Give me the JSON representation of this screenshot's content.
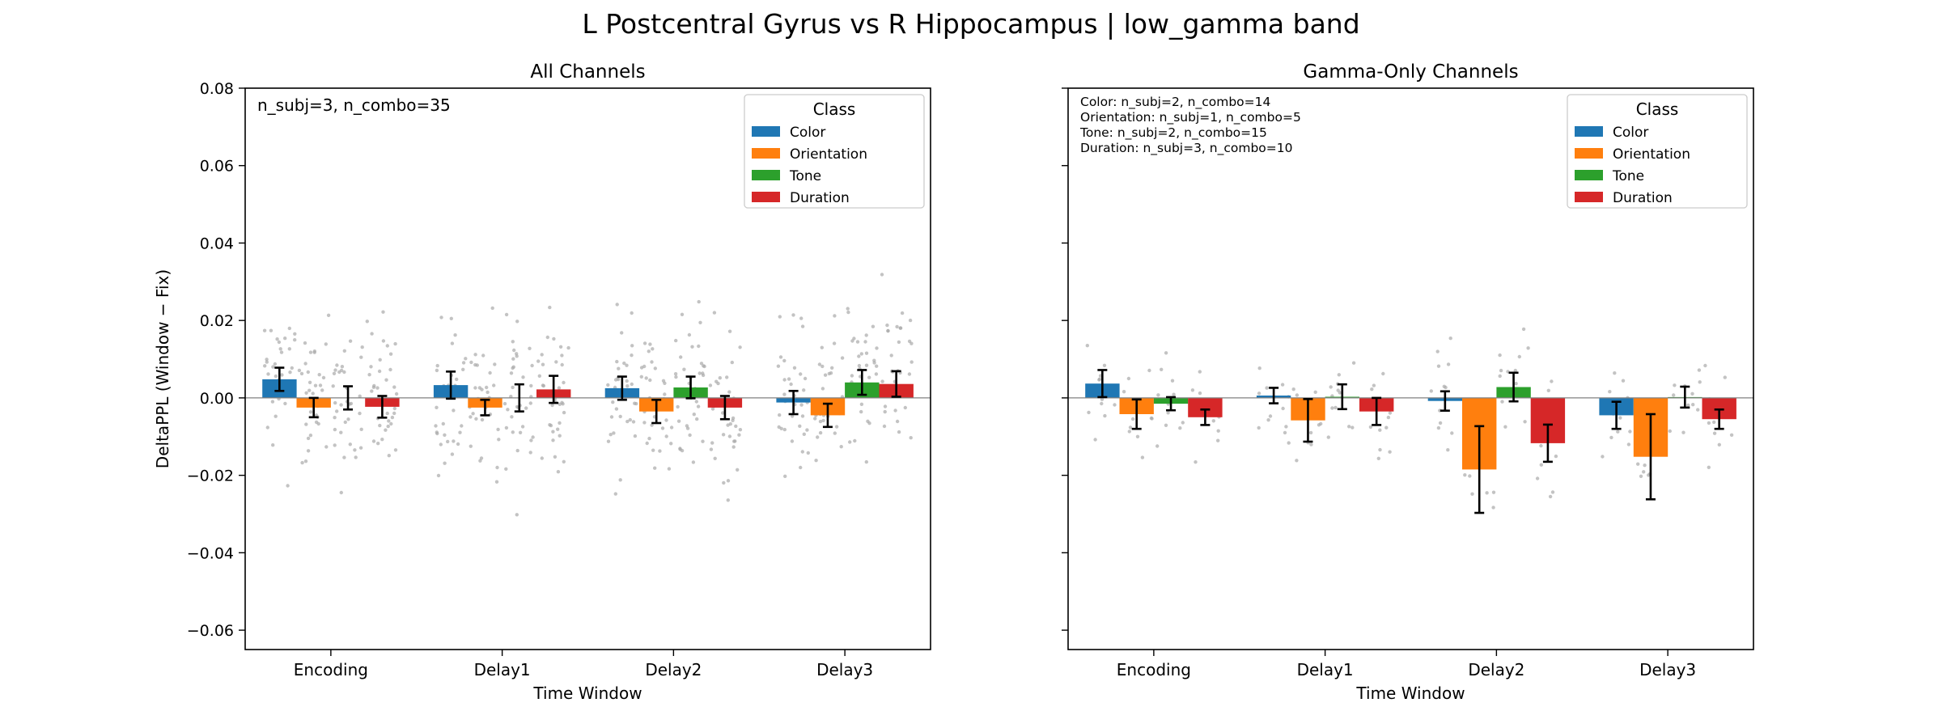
{
  "figure_title": "L Postcentral Gyrus vs R Hippocampus  |  low_gamma band",
  "colors": {
    "Color": "#1f77b4",
    "Orientation": "#ff7f0e",
    "Tone": "#2ca02c",
    "Duration": "#d62728",
    "scatter": "#aaaaaa",
    "errorbar": "#000000"
  },
  "chart_data": [
    {
      "type": "bar",
      "title": "All Channels",
      "xlabel": "Time Window",
      "ylabel": "DeltaPPL (Window − Fix)",
      "ylim": [
        -0.065,
        0.08
      ],
      "yticks": [
        -0.06,
        -0.04,
        -0.02,
        0.0,
        0.02,
        0.04,
        0.06,
        0.08
      ],
      "yticklabels": [
        "−0.06",
        "−0.04",
        "−0.02",
        "0.00",
        "0.02",
        "0.04",
        "0.06",
        "0.08"
      ],
      "categories": [
        "Encoding",
        "Delay1",
        "Delay2",
        "Delay3"
      ],
      "annotation": [
        "n_subj=3, n_combo=35"
      ],
      "legend": {
        "title": "Class",
        "entries": [
          "Color",
          "Orientation",
          "Tone",
          "Duration"
        ],
        "placement": "top-right"
      },
      "grid": false,
      "series": [
        {
          "name": "Color",
          "values": [
            0.0048,
            0.0033,
            0.0025,
            -0.0012
          ],
          "errors": [
            0.003,
            0.0035,
            0.003,
            0.003
          ]
        },
        {
          "name": "Orientation",
          "values": [
            -0.0025,
            -0.0025,
            -0.0035,
            -0.0045
          ],
          "errors": [
            0.0025,
            0.002,
            0.003,
            0.003
          ]
        },
        {
          "name": "Tone",
          "values": [
            0.0,
            0.0,
            0.0027,
            0.004
          ],
          "errors": [
            0.003,
            0.0035,
            0.0028,
            0.0032
          ]
        },
        {
          "name": "Duration",
          "values": [
            -0.0023,
            0.0022,
            -0.0025,
            0.0036
          ],
          "errors": [
            0.0028,
            0.0035,
            0.003,
            0.0033
          ]
        }
      ]
    },
    {
      "type": "bar",
      "title": "Gamma-Only Channels",
      "xlabel": "Time Window",
      "ylabel": "",
      "ylim": [
        -0.065,
        0.08
      ],
      "yticks": [
        -0.06,
        -0.04,
        -0.02,
        0.0,
        0.02,
        0.04,
        0.06,
        0.08
      ],
      "yticklabels": [],
      "categories": [
        "Encoding",
        "Delay1",
        "Delay2",
        "Delay3"
      ],
      "annotation": [
        "Color: n_subj=2, n_combo=14",
        "Orientation: n_subj=1, n_combo=5",
        "Tone: n_subj=2, n_combo=15",
        "Duration: n_subj=3, n_combo=10"
      ],
      "legend": {
        "title": "Class",
        "entries": [
          "Color",
          "Orientation",
          "Tone",
          "Duration"
        ],
        "placement": "top-right"
      },
      "grid": false,
      "series": [
        {
          "name": "Color",
          "values": [
            0.0037,
            0.0006,
            -0.0008,
            -0.0045
          ],
          "errors": [
            0.0035,
            0.002,
            0.0025,
            0.0035
          ]
        },
        {
          "name": "Orientation",
          "values": [
            -0.0042,
            -0.0058,
            -0.0185,
            -0.0152
          ],
          "errors": [
            0.0038,
            0.0055,
            0.0112,
            0.011
          ]
        },
        {
          "name": "Tone",
          "values": [
            -0.0015,
            0.0003,
            0.0028,
            0.0002
          ],
          "errors": [
            0.0017,
            0.0032,
            0.0037,
            0.0027
          ]
        },
        {
          "name": "Duration",
          "values": [
            -0.005,
            -0.0035,
            -0.0117,
            -0.0055
          ],
          "errors": [
            0.002,
            0.0035,
            0.0048,
            0.0025
          ]
        }
      ]
    }
  ]
}
